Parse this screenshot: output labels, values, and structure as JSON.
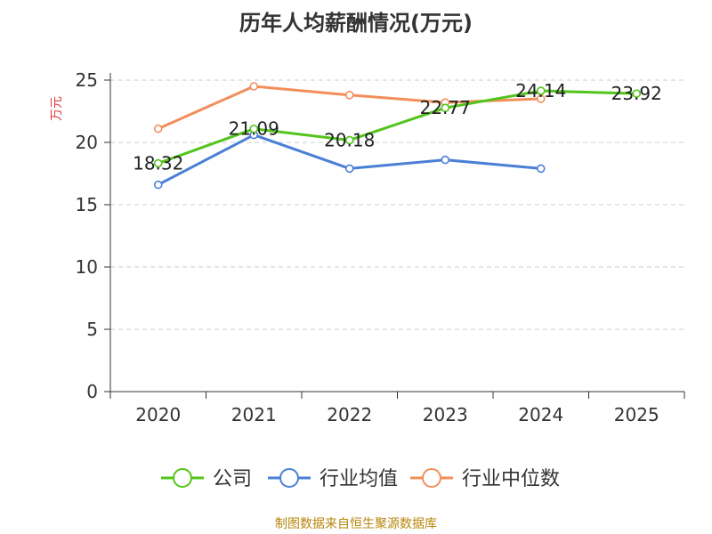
{
  "chart_data": {
    "type": "line",
    "title": "历年人均薪酬情况(万元)",
    "ylabel": "万元",
    "xlabel": "",
    "categories": [
      "2020",
      "2021",
      "2022",
      "2023",
      "2024",
      "2025"
    ],
    "ylim": [
      0,
      25
    ],
    "yticks": [
      0,
      5,
      10,
      15,
      20,
      25
    ],
    "grid": true,
    "legend_position": "bottom",
    "series": [
      {
        "name": "公司",
        "color": "#52c41a",
        "values": [
          18.32,
          21.09,
          20.18,
          22.77,
          24.14,
          23.92
        ],
        "labels": [
          "18.32",
          "21.09",
          "20.18",
          "22.77",
          "24.14",
          "23.92"
        ]
      },
      {
        "name": "行业均值",
        "color": "#4a7fd6",
        "values": [
          16.6,
          20.6,
          17.9,
          18.6,
          17.9,
          null
        ]
      },
      {
        "name": "行业中位数",
        "color": "#f28e5a",
        "values": [
          21.1,
          24.5,
          23.8,
          23.2,
          23.5,
          null
        ]
      }
    ]
  },
  "source": "制图数据来自恒生聚源数据库"
}
